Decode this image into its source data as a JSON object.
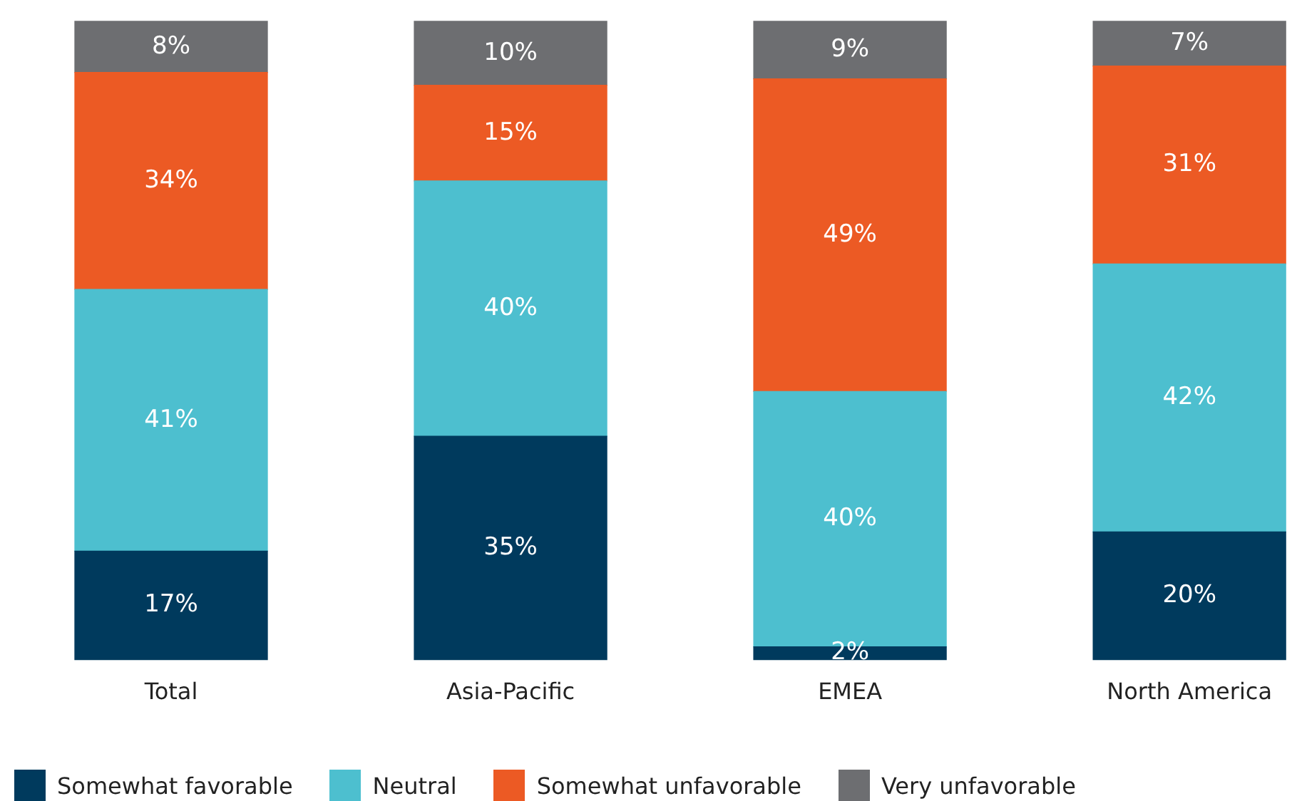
{
  "chart_data": {
    "type": "bar",
    "stacked": true,
    "categories": [
      "Total",
      "Asia-Pacific",
      "EMEA",
      "North America"
    ],
    "ylim": [
      0,
      100
    ],
    "tick_labels": "x",
    "grid": false,
    "legend": "bottom left",
    "series": [
      {
        "name": "Somewhat favorable",
        "color": "#003a5d",
        "values": [
          17,
          35,
          2,
          20
        ],
        "value_labels": [
          "17%",
          "35%",
          "2%",
          "20%"
        ]
      },
      {
        "name": "Neutral",
        "color": "#4dbfcf",
        "values": [
          41,
          40,
          40,
          42
        ],
        "value_labels": [
          "41%",
          "40%",
          "40%",
          "42%"
        ]
      },
      {
        "name": "Somewhat unfavorable",
        "color": "#ec5a24",
        "values": [
          34,
          15,
          49,
          31
        ],
        "value_labels": [
          "34%",
          "15%",
          "49%",
          "31%"
        ]
      },
      {
        "name": "Very unfavorable",
        "color": "#6d6e71",
        "values": [
          8,
          10,
          9,
          7
        ],
        "value_labels": [
          "8%",
          "10%",
          "9%",
          "7%"
        ]
      }
    ]
  }
}
